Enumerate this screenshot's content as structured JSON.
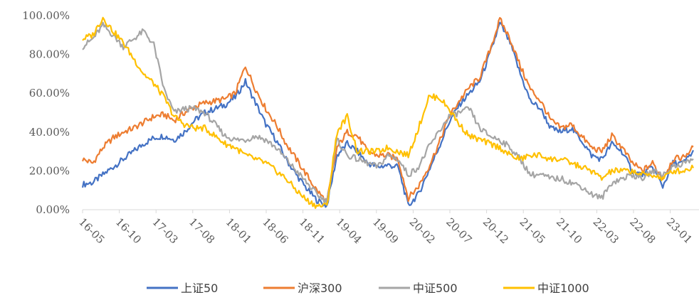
{
  "chart_data": {
    "type": "line",
    "title": "",
    "xlabel": "",
    "ylabel": "",
    "ylim": [
      0,
      100
    ],
    "y_ticks": [
      "0.00%",
      "20.00%",
      "40.00%",
      "60.00%",
      "80.00%",
      "100.00%"
    ],
    "x_ticks": [
      "16-05",
      "16-10",
      "17-03",
      "17-08",
      "18-01",
      "18-06",
      "18-11",
      "19-04",
      "19-09",
      "20-02",
      "20-07",
      "20-12",
      "21-05",
      "21-10",
      "22-03",
      "22-08",
      "23-01"
    ],
    "grid": false,
    "legend_position": "bottom",
    "series": [
      {
        "name": "上证50",
        "color": "#4472C4",
        "values": [
          13,
          14,
          18,
          22,
          26,
          30,
          34,
          37,
          38,
          36,
          40,
          46,
          50,
          52,
          54,
          58,
          66,
          55,
          44,
          36,
          26,
          18,
          11,
          5,
          2,
          28,
          34,
          30,
          24,
          22,
          23,
          22,
          2,
          8,
          20,
          32,
          45,
          54,
          60,
          66,
          80,
          96,
          86,
          70,
          56,
          52,
          42,
          40,
          42,
          36,
          28,
          26,
          34,
          30,
          20,
          18,
          22,
          12,
          24,
          24,
          30
        ]
      },
      {
        "name": "沪深300",
        "color": "#ED7D31",
        "values": [
          26,
          24,
          32,
          37,
          40,
          42,
          45,
          48,
          49,
          46,
          50,
          53,
          55,
          56,
          57,
          60,
          74,
          62,
          52,
          44,
          34,
          26,
          18,
          10,
          4,
          32,
          40,
          38,
          30,
          28,
          28,
          26,
          6,
          12,
          22,
          34,
          48,
          56,
          63,
          68,
          82,
          98,
          88,
          74,
          62,
          56,
          46,
          42,
          44,
          38,
          32,
          30,
          38,
          32,
          24,
          20,
          24,
          16,
          26,
          27,
          32
        ]
      },
      {
        "name": "中证500",
        "color": "#A5A5A5",
        "values": [
          84,
          88,
          95,
          90,
          84,
          88,
          92,
          85,
          62,
          50,
          52,
          52,
          50,
          44,
          38,
          36,
          36,
          38,
          36,
          32,
          26,
          20,
          14,
          8,
          4,
          36,
          28,
          26,
          24,
          22,
          28,
          26,
          18,
          22,
          32,
          40,
          48,
          50,
          52,
          42,
          38,
          36,
          32,
          26,
          18,
          18,
          16,
          16,
          14,
          12,
          8,
          6,
          14,
          16,
          18,
          16,
          20,
          18,
          22,
          24,
          26
        ]
      },
      {
        "name": "中证1000",
        "color": "#FFC000",
        "values": [
          88,
          90,
          99,
          92,
          86,
          78,
          70,
          65,
          58,
          48,
          44,
          42,
          42,
          38,
          34,
          32,
          28,
          26,
          24,
          20,
          16,
          10,
          5,
          2,
          2,
          40,
          48,
          30,
          30,
          30,
          32,
          30,
          28,
          42,
          58,
          58,
          52,
          44,
          38,
          36,
          34,
          32,
          28,
          26,
          28,
          28,
          26,
          26,
          24,
          22,
          20,
          16,
          20,
          20,
          20,
          18,
          18,
          16,
          20,
          20,
          22
        ]
      }
    ]
  }
}
